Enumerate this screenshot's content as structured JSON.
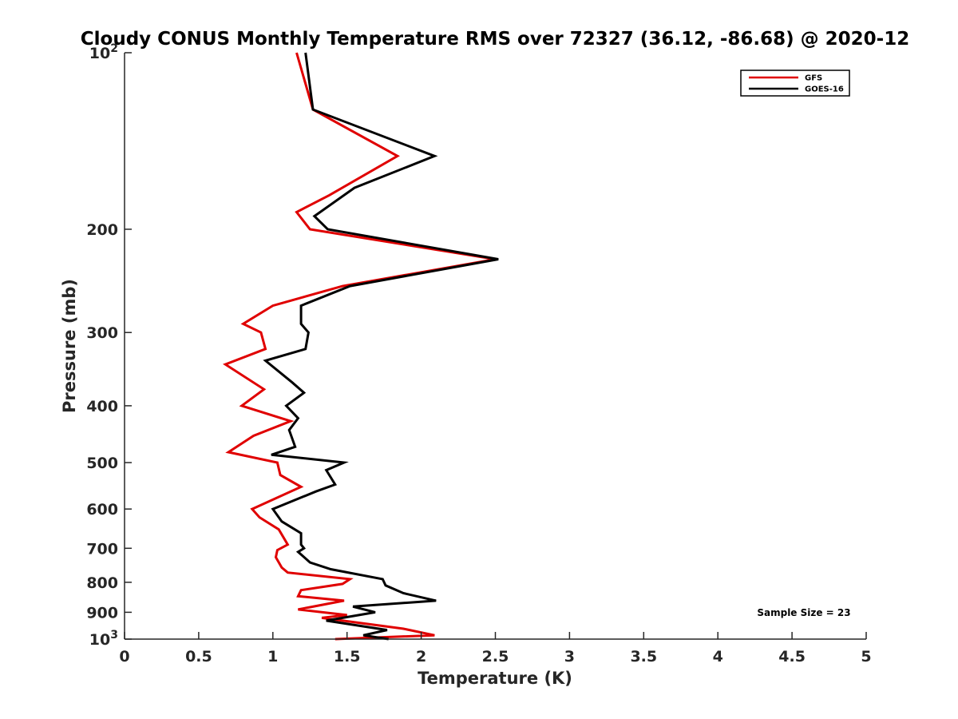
{
  "chart_data": {
    "type": "line",
    "title": "Cloudy CONUS Monthly Temperature RMS over 72327 (36.12, -86.68) @ 2020-12",
    "xlabel": "Temperature (K)",
    "ylabel": "Pressure (mb)",
    "xlim": [
      0,
      5
    ],
    "ylim": [
      100,
      1000
    ],
    "y_scale": "log",
    "y_reversed": true,
    "x_ticks": [
      0,
      0.5,
      1,
      1.5,
      2,
      2.5,
      3,
      3.5,
      4,
      4.5,
      5
    ],
    "x_tick_labels": [
      "0",
      "0.5",
      "1",
      "1.5",
      "2",
      "2.5",
      "3",
      "3.5",
      "4",
      "4.5",
      "5"
    ],
    "y_ticks": [
      100,
      200,
      300,
      400,
      500,
      600,
      700,
      800,
      900,
      1000
    ],
    "y_tick_labels": [
      {
        "base": "10",
        "exp": "2"
      },
      {
        "base": "200",
        "exp": ""
      },
      {
        "base": "300",
        "exp": ""
      },
      {
        "base": "400",
        "exp": ""
      },
      {
        "base": "500",
        "exp": ""
      },
      {
        "base": "600",
        "exp": ""
      },
      {
        "base": "700",
        "exp": ""
      },
      {
        "base": "800",
        "exp": ""
      },
      {
        "base": "900",
        "exp": ""
      },
      {
        "base": "10",
        "exp": "3"
      }
    ],
    "legend_position": "top-right",
    "annotation": "Sample Size = 23",
    "series": [
      {
        "name": "GFS",
        "color": "#e00000",
        "points": [
          [
            1.16,
            100
          ],
          [
            1.27,
            125
          ],
          [
            1.84,
            150
          ],
          [
            1.38,
            175
          ],
          [
            1.16,
            187
          ],
          [
            1.25,
            200
          ],
          [
            2.5,
            225
          ],
          [
            1.47,
            250
          ],
          [
            1.0,
            270
          ],
          [
            0.8,
            290
          ],
          [
            0.92,
            300
          ],
          [
            0.95,
            320
          ],
          [
            0.68,
            340
          ],
          [
            0.94,
            375
          ],
          [
            0.79,
            400
          ],
          [
            1.12,
            425
          ],
          [
            0.87,
            450
          ],
          [
            0.7,
            480
          ],
          [
            1.03,
            500
          ],
          [
            1.05,
            525
          ],
          [
            1.19,
            550
          ],
          [
            0.86,
            600
          ],
          [
            0.91,
            620
          ],
          [
            1.04,
            650
          ],
          [
            1.1,
            690
          ],
          [
            1.03,
            705
          ],
          [
            1.02,
            725
          ],
          [
            1.06,
            755
          ],
          [
            1.1,
            770
          ],
          [
            1.52,
            790
          ],
          [
            1.47,
            805
          ],
          [
            1.19,
            825
          ],
          [
            1.17,
            845
          ],
          [
            1.48,
            860
          ],
          [
            1.17,
            890
          ],
          [
            1.5,
            910
          ],
          [
            1.33,
            920
          ],
          [
            1.88,
            960
          ],
          [
            2.09,
            985
          ],
          [
            1.42,
            1000
          ]
        ]
      },
      {
        "name": "GOES-16",
        "color": "#000000",
        "points": [
          [
            1.22,
            100
          ],
          [
            1.27,
            125
          ],
          [
            2.09,
            150
          ],
          [
            1.55,
            170
          ],
          [
            1.28,
            190
          ],
          [
            1.37,
            200
          ],
          [
            2.52,
            225
          ],
          [
            1.52,
            250
          ],
          [
            1.19,
            270
          ],
          [
            1.19,
            290
          ],
          [
            1.24,
            300
          ],
          [
            1.22,
            320
          ],
          [
            0.95,
            335
          ],
          [
            1.13,
            365
          ],
          [
            1.21,
            380
          ],
          [
            1.09,
            400
          ],
          [
            1.17,
            420
          ],
          [
            1.11,
            440
          ],
          [
            1.15,
            470
          ],
          [
            0.99,
            485
          ],
          [
            1.48,
            500
          ],
          [
            1.36,
            515
          ],
          [
            1.42,
            545
          ],
          [
            1.29,
            560
          ],
          [
            1.0,
            600
          ],
          [
            1.06,
            630
          ],
          [
            1.19,
            660
          ],
          [
            1.19,
            690
          ],
          [
            1.21,
            700
          ],
          [
            1.17,
            710
          ],
          [
            1.25,
            740
          ],
          [
            1.39,
            760
          ],
          [
            1.74,
            790
          ],
          [
            1.76,
            810
          ],
          [
            1.88,
            835
          ],
          [
            2.1,
            860
          ],
          [
            1.54,
            880
          ],
          [
            1.69,
            900
          ],
          [
            1.36,
            930
          ],
          [
            1.77,
            965
          ],
          [
            1.61,
            985
          ],
          [
            1.78,
            1000
          ]
        ]
      }
    ]
  }
}
